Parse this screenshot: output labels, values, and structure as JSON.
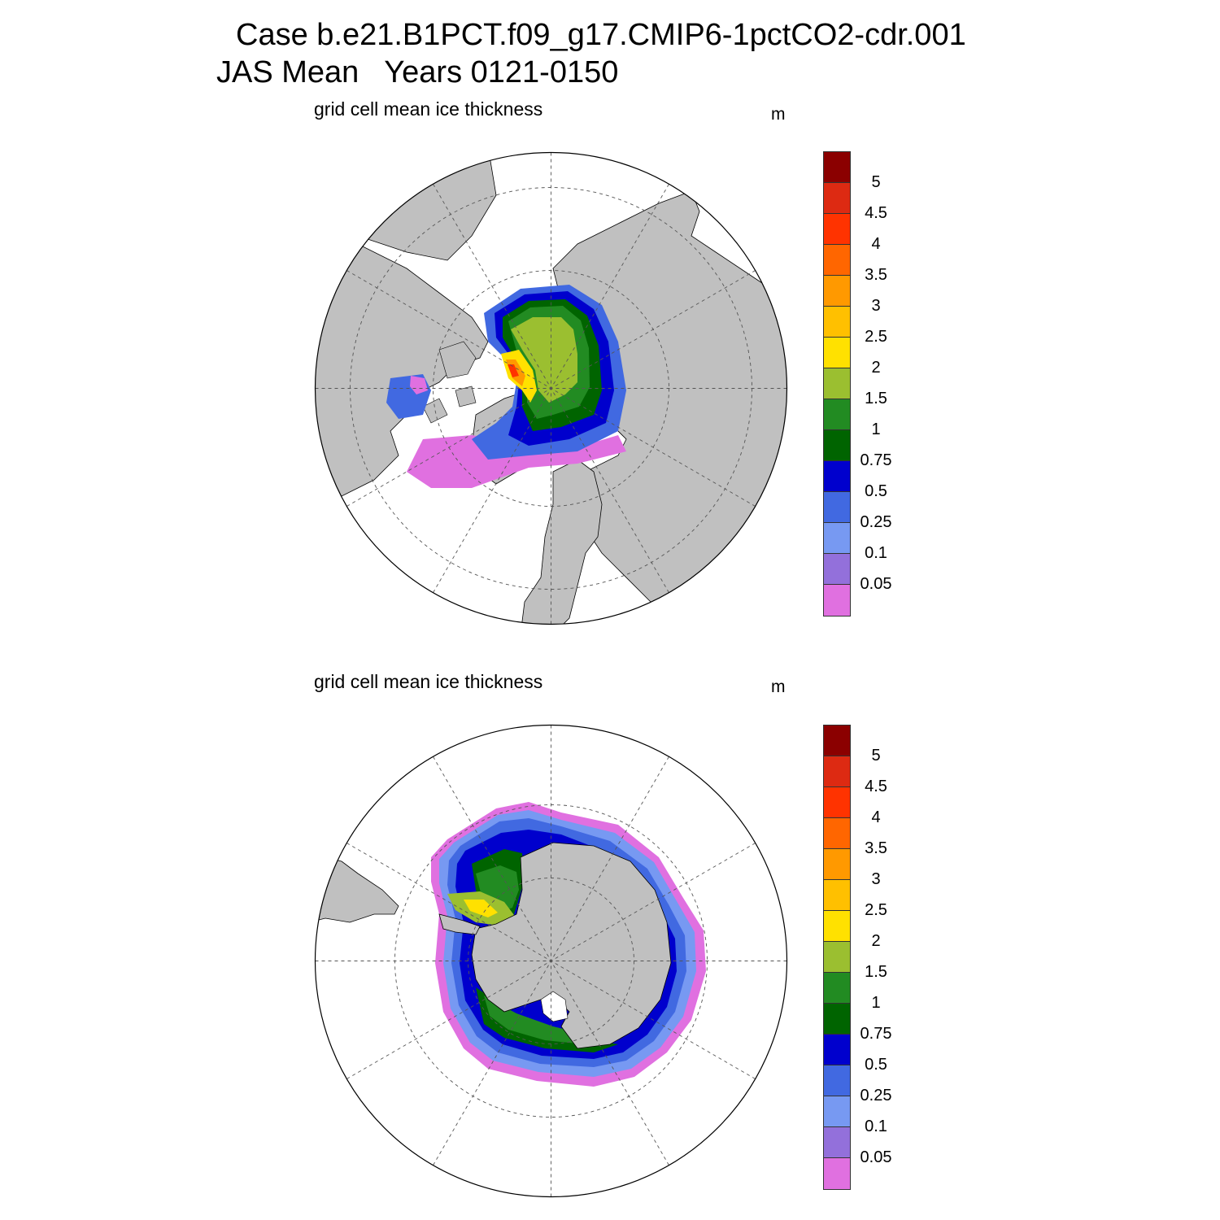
{
  "title": {
    "line1": "Case b.e21.B1PCT.f09_g17.CMIP6-1pctCO2-cdr.001",
    "line2": "JAS Mean   Years 0121-0150"
  },
  "panels": [
    {
      "id": "north",
      "title": "grid cell mean ice thickness",
      "units": "m",
      "hemisphere": "Arctic (north polar stereographic)"
    },
    {
      "id": "south",
      "title": "grid cell mean ice thickness",
      "units": "m",
      "hemisphere": "Antarctic (south polar stereographic)"
    }
  ],
  "colorbar": {
    "labels": [
      "5",
      "4.5",
      "4",
      "3.5",
      "3",
      "2.5",
      "2",
      "1.5",
      "1",
      "0.75",
      "0.5",
      "0.25",
      "0.1",
      "0.05"
    ],
    "colors": [
      "#8b0000",
      "#dd2a12",
      "#ff3300",
      "#ff6600",
      "#ff9900",
      "#ffc000",
      "#ffe100",
      "#9bbf30",
      "#228b22",
      "#006400",
      "#0000cd",
      "#4169e1",
      "#7799f2",
      "#9370db",
      "#e070e0"
    ]
  },
  "map_colors": {
    "land": "#c0c0c0",
    "ocean": "#ffffff",
    "grid": "#555555"
  }
}
